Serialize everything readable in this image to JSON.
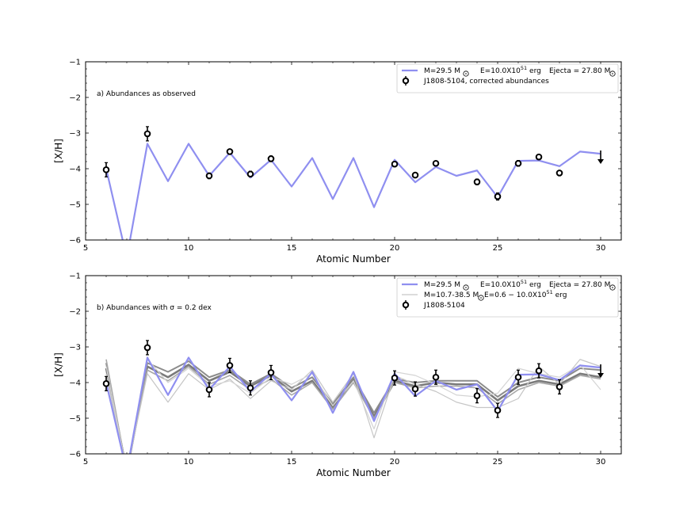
{
  "chart_data": [
    {
      "type": "line",
      "panel_label": "a) Abundances as observed",
      "xlabel": "Atomic Number",
      "ylabel": "[X/H]",
      "xlim": [
        5,
        31
      ],
      "ylim": [
        -6,
        -1
      ],
      "xticks": [
        5,
        10,
        15,
        20,
        25,
        30
      ],
      "yticks": [
        -6,
        -5,
        -4,
        -3,
        -2,
        -1
      ],
      "grid": false,
      "legend_placement": "top-right",
      "legend": {
        "model_mass": "M=29.5 M",
        "model_energy": "E=10.0X10",
        "model_energy_exp": "51",
        "model_energy_unit": " erg",
        "ejecta": "Ejecta = 27.80  M",
        "star_label": "J1808-5104, corrected abundances",
        "model_color": "#8f8ff0"
      },
      "series": [
        {
          "name": "M=29.5 M⊙  E=10.0X10^51 erg  Ejecta = 27.80 M⊙",
          "color": "#8f8ff0",
          "x": [
            6,
            7,
            8,
            9,
            10,
            11,
            12,
            13,
            14,
            15,
            16,
            17,
            18,
            19,
            20,
            21,
            22,
            23,
            24,
            25,
            26,
            27,
            28,
            29,
            30
          ],
          "y": [
            -4.0,
            -6.5,
            -3.3,
            -4.35,
            -3.3,
            -4.2,
            -3.55,
            -4.25,
            -3.75,
            -4.5,
            -3.7,
            -4.85,
            -3.7,
            -5.08,
            -3.75,
            -4.38,
            -3.95,
            -4.2,
            -4.05,
            -4.8,
            -3.78,
            -3.77,
            -3.93,
            -3.52,
            -3.58
          ]
        }
      ],
      "observations": {
        "name": "J1808-5104, corrected abundances",
        "x": [
          6,
          8,
          11,
          12,
          13,
          14,
          20,
          21,
          22,
          24,
          25,
          26,
          27,
          28
        ],
        "y": [
          -4.03,
          -3.02,
          -4.2,
          -3.52,
          -4.15,
          -3.72,
          -3.87,
          -4.18,
          -3.85,
          -4.37,
          -4.78,
          -3.85,
          -3.67,
          -4.12
        ],
        "err": [
          0.2,
          0.2,
          0.08,
          0.05,
          0.08,
          0.08,
          0.05,
          0.05,
          0.05,
          0.08,
          0.1,
          0.08,
          0.05,
          0.05
        ],
        "upper_limits": [
          {
            "x": 30,
            "y": -3.6
          }
        ]
      }
    },
    {
      "type": "line",
      "panel_label": "b) Abundances with σ = 0.2 dex",
      "xlabel": "Atomic Number",
      "ylabel": "[X/H]",
      "xlim": [
        5,
        31
      ],
      "ylim": [
        -6,
        -1
      ],
      "xticks": [
        5,
        10,
        15,
        20,
        25,
        30
      ],
      "yticks": [
        -6,
        -5,
        -4,
        -3,
        -2,
        -1
      ],
      "grid": false,
      "legend_placement": "top-right",
      "legend": {
        "model_mass": "M=29.5 M",
        "model_energy": "E=10.0X10",
        "model_energy_exp": "51",
        "model_energy_unit": " erg",
        "ejecta": "Ejecta = 27.80  M",
        "range_mass": "M=10.7-38.5 M",
        "range_energy": " E=0.6 − 10.0X10",
        "range_energy_exp": "51",
        "range_energy_unit": " erg",
        "star_label": "J1808-5104",
        "model_color": "#8f8ff0",
        "range_color": "#c8c8c8"
      },
      "series": [
        {
          "name": "M=29.5 M⊙  E=10.0X10^51 erg  Ejecta = 27.80 M⊙",
          "color": "#8f8ff0",
          "x": [
            6,
            7,
            8,
            9,
            10,
            11,
            12,
            13,
            14,
            15,
            16,
            17,
            18,
            19,
            20,
            21,
            22,
            23,
            24,
            25,
            26,
            27,
            28,
            29,
            30
          ],
          "y": [
            -4.0,
            -6.5,
            -3.3,
            -4.35,
            -3.3,
            -4.2,
            -3.55,
            -4.25,
            -3.75,
            -4.5,
            -3.7,
            -4.85,
            -3.7,
            -5.08,
            -3.75,
            -4.38,
            -3.95,
            -4.2,
            -4.05,
            -4.8,
            -3.78,
            -3.77,
            -3.93,
            -3.52,
            -3.58
          ]
        }
      ],
      "ensemble": {
        "name": "M=10.7-38.5 M⊙  E=0.6 − 10.0X10^51 erg",
        "x": [
          6,
          7,
          8,
          9,
          10,
          11,
          12,
          13,
          14,
          15,
          16,
          17,
          18,
          19,
          20,
          21,
          22,
          23,
          24,
          25,
          26,
          27,
          28,
          29,
          30
        ],
        "members": [
          {
            "color": "#7a7a7a",
            "width": 2.6,
            "y": [
              -3.6,
              -6.5,
              -3.55,
              -3.85,
              -3.5,
              -3.95,
              -3.7,
              -4.1,
              -3.8,
              -4.25,
              -3.95,
              -4.7,
              -3.9,
              -4.95,
              -3.95,
              -4.1,
              -4.0,
              -4.05,
              -4.05,
              -4.5,
              -4.1,
              -3.95,
              -4.05,
              -3.75,
              -3.85
            ]
          },
          {
            "color": "#8c8c8c",
            "width": 2.0,
            "y": [
              -3.45,
              -6.5,
              -3.45,
              -3.7,
              -3.4,
              -3.85,
              -3.65,
              -4.05,
              -3.75,
              -4.15,
              -3.85,
              -4.6,
              -3.85,
              -4.85,
              -3.9,
              -4.0,
              -3.95,
              -3.95,
              -3.95,
              -4.4,
              -4.0,
              -3.85,
              -3.95,
              -3.6,
              -3.65
            ]
          },
          {
            "color": "#a8a8a8",
            "width": 1.6,
            "y": [
              -3.35,
              -6.5,
              -3.65,
              -3.95,
              -3.55,
              -4.05,
              -3.8,
              -4.2,
              -3.9,
              -4.35,
              -4.0,
              -4.75,
              -4.0,
              -5.0,
              -4.0,
              -4.15,
              -4.1,
              -4.1,
              -4.15,
              -4.6,
              -4.2,
              -4.0,
              -4.1,
              -3.8,
              -3.9
            ]
          },
          {
            "color": "#c6c6c6",
            "width": 1.2,
            "y": [
              -3.75,
              -6.5,
              -3.75,
              -4.55,
              -3.75,
              -4.2,
              -3.9,
              -4.45,
              -3.95,
              -4.2,
              -3.65,
              -4.55,
              -3.75,
              -5.55,
              -3.8,
              -4.05,
              -4.25,
              -4.55,
              -4.7,
              -4.7,
              -4.45,
              -3.55,
              -4.05,
              -3.35,
              -3.55
            ]
          },
          {
            "color": "#d4d4d4",
            "width": 1.2,
            "y": [
              -3.55,
              -6.5,
              -3.35,
              -4.0,
              -3.6,
              -4.1,
              -3.95,
              -4.3,
              -3.85,
              -4.05,
              -3.75,
              -4.65,
              -3.95,
              -5.3,
              -3.7,
              -3.8,
              -4.05,
              -4.35,
              -4.4,
              -4.3,
              -3.6,
              -3.75,
              -3.85,
              -3.5,
              -4.2
            ]
          }
        ]
      },
      "observations": {
        "name": "J1808-5104",
        "x": [
          6,
          8,
          11,
          12,
          13,
          14,
          20,
          21,
          22,
          24,
          25,
          26,
          27,
          28
        ],
        "y": [
          -4.03,
          -3.02,
          -4.2,
          -3.52,
          -4.15,
          -3.72,
          -3.87,
          -4.18,
          -3.85,
          -4.37,
          -4.78,
          -3.85,
          -3.67,
          -4.12
        ],
        "err": [
          0.2,
          0.2,
          0.2,
          0.2,
          0.2,
          0.2,
          0.2,
          0.2,
          0.2,
          0.2,
          0.2,
          0.2,
          0.2,
          0.2
        ],
        "upper_limits": [
          {
            "x": 30,
            "y": -3.6
          }
        ]
      }
    }
  ]
}
